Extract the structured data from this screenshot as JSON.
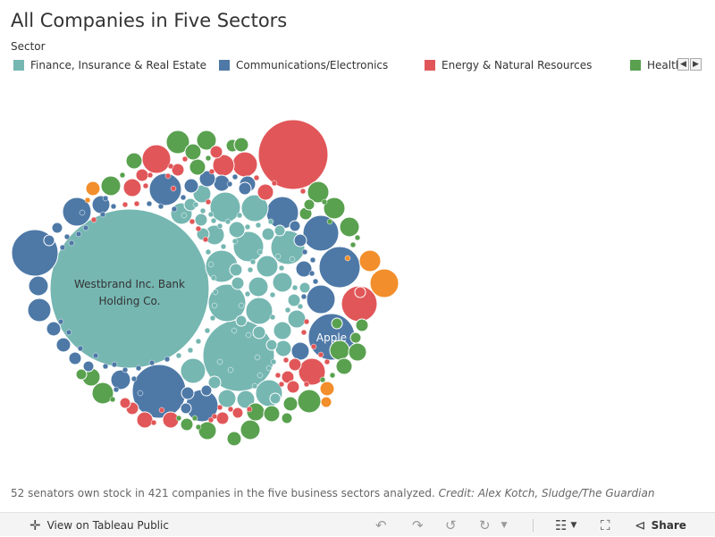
{
  "title": "All Companies in Five Sectors",
  "legend": {
    "title": "Sector",
    "items": [
      {
        "label": "Finance, Insurance & Real Estate",
        "color": "#76b7b2"
      },
      {
        "label": "Communications/Electronics",
        "color": "#4e79a7"
      },
      {
        "label": "Energy & Natural Resources",
        "color": "#e15759"
      },
      {
        "label": "Health",
        "color": "#59a14f"
      }
    ],
    "prev_icon": "chevron-left-icon",
    "next_icon": "chevron-right-icon"
  },
  "chart_data": {
    "type": "packed-bubble",
    "sector_colors": {
      "Finance, Insurance & Real Estate": "#76b7b2",
      "Communications/Electronics": "#4e79a7",
      "Energy & Natural Resources": "#e15759",
      "Health": "#59a14f",
      "Unlisted (orange)": "#f28e2b"
    },
    "labeled_bubbles": [
      {
        "label": "Westbrand Inc. Bank Holding Co.",
        "sector": "Finance, Insurance & Real Estate"
      },
      {
        "label": "Apple",
        "sector": "Communications/Electronics"
      }
    ]
  },
  "footnote": {
    "text": "52 senators own stock in 421 companies in the five business sectors analyzed.",
    "credit": "Credit: Alex Kotch, Sludge/The Guardian"
  },
  "toolbar": {
    "view_label": "View on Tableau Public",
    "share_label": "Share"
  }
}
